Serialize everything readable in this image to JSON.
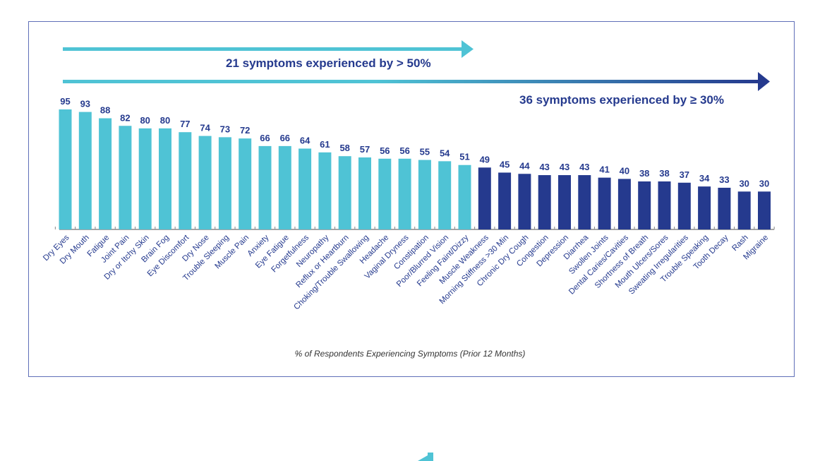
{
  "chart_data": {
    "type": "bar",
    "categories": [
      "Dry Eyes",
      "Dry Mouth",
      "Fatigue",
      "Joint Pain",
      "Dry or Itchy Skin",
      "Brain Fog",
      "Eye Discomfort",
      "Dry Nose",
      "Trouble Sleeping",
      "Muscle Pain",
      "Anxiety",
      "Eye Fatigue",
      "Forgetfulness",
      "Neuropathy",
      "Reflux or Heartburn",
      "Choking/Trouble Swallowing",
      "Headache",
      "Vaginal Dryness",
      "Constipation",
      "Poor/Blurred Vision",
      "Feeling Faint/Dizzy",
      "Muscle Weakness",
      "Morning Stiffness >30 Min",
      "Chronic Dry Cough",
      "Congestion",
      "Depression",
      "Diarrhea",
      "Swollen Joints",
      "Dental Caries/Cavities",
      "Shortness of Breath",
      "Mouth Ulcers/Sores",
      "Sweating Irregularities",
      "Trouble Speaking",
      "Tooth Decay",
      "Rash",
      "Migraine"
    ],
    "values": [
      95,
      93,
      88,
      82,
      80,
      80,
      77,
      74,
      73,
      72,
      66,
      66,
      64,
      61,
      58,
      57,
      56,
      56,
      55,
      54,
      51,
      49,
      45,
      44,
      43,
      43,
      43,
      41,
      40,
      38,
      38,
      37,
      34,
      33,
      30,
      30
    ],
    "xlabel": "% of Respondents Experiencing Symptoms (Prior 12 Months)",
    "ylabel": "",
    "ylim": [
      0,
      100
    ],
    "grid": false,
    "data_labels": true,
    "annotations": [
      {
        "text": "21 symptoms experienced by > 50%",
        "spans_bars": 21,
        "color": "#4fc3d5"
      },
      {
        "text": "36 symptoms experienced by ≥ 30%",
        "spans_bars": 36,
        "color": "#253a8e"
      }
    ],
    "colors": {
      "above_50": "#4fc3d5",
      "below_50": "#253a8e",
      "text": "#253a8e"
    }
  }
}
